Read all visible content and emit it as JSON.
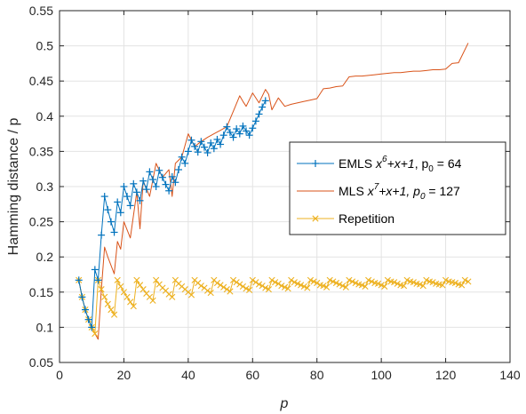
{
  "chart_data": {
    "type": "line",
    "xlabel": "p",
    "ylabel": "Hamming distance / p",
    "xlim": [
      0,
      140
    ],
    "ylim": [
      0.05,
      0.55
    ],
    "xticks": [
      0,
      20,
      40,
      60,
      80,
      100,
      120,
      140
    ],
    "yticks": [
      0.05,
      0.1,
      0.15,
      0.2,
      0.25,
      0.3,
      0.35,
      0.4,
      0.45,
      0.5,
      0.55
    ],
    "xtick_labels": [
      "0",
      "20",
      "40",
      "60",
      "80",
      "100",
      "120",
      "140"
    ],
    "ytick_labels": [
      "0.05",
      "0.1",
      "0.15",
      "0.2",
      "0.25",
      "0.3",
      "0.35",
      "0.4",
      "0.45",
      "0.5",
      "0.55"
    ],
    "grid": true,
    "legend_position": "right",
    "series": [
      {
        "name": "EMLS",
        "legend_label": {
          "prefix": "EMLS  ",
          "poly_base": "x",
          "poly_exp": "6",
          "poly_rest": "+x+1",
          "p0_text": ", p",
          "p0_sub": "0",
          "p0_value": " = 64"
        },
        "color": "#0072BD",
        "marker": "plus",
        "x": [
          6,
          7,
          8,
          9,
          10,
          11,
          12,
          13,
          14,
          15,
          16,
          17,
          18,
          19,
          20,
          21,
          22,
          23,
          24,
          25,
          26,
          27,
          28,
          29,
          30,
          31,
          32,
          33,
          34,
          35,
          36,
          37,
          38,
          39,
          40,
          41,
          42,
          43,
          44,
          45,
          46,
          47,
          48,
          49,
          50,
          51,
          52,
          53,
          54,
          55,
          56,
          57,
          58,
          59,
          60,
          61,
          62,
          63,
          64
        ],
        "values": [
          0.167,
          0.143,
          0.125,
          0.111,
          0.1,
          0.182,
          0.167,
          0.231,
          0.286,
          0.267,
          0.25,
          0.235,
          0.278,
          0.263,
          0.3,
          0.286,
          0.273,
          0.304,
          0.292,
          0.28,
          0.308,
          0.296,
          0.321,
          0.31,
          0.3,
          0.323,
          0.313,
          0.303,
          0.294,
          0.314,
          0.306,
          0.324,
          0.342,
          0.333,
          0.35,
          0.366,
          0.357,
          0.349,
          0.364,
          0.356,
          0.348,
          0.362,
          0.354,
          0.367,
          0.36,
          0.373,
          0.385,
          0.377,
          0.37,
          0.382,
          0.375,
          0.386,
          0.379,
          0.373,
          0.383,
          0.393,
          0.403,
          0.413,
          0.422
        ]
      },
      {
        "name": "MLS",
        "legend_label": {
          "prefix": "MLS  ",
          "poly_base": "x",
          "poly_exp": "7",
          "poly_rest": "+x+1",
          "p0_text": ", p",
          "p0_sub": "0",
          "p0_value": " = 127"
        },
        "color": "#D95319",
        "marker": "none",
        "x": [
          6,
          7,
          8,
          9,
          10,
          11,
          12,
          13,
          14,
          15,
          16,
          17,
          18,
          19,
          20,
          22,
          24,
          25,
          26,
          28,
          30,
          32,
          34,
          35,
          36,
          38,
          40,
          42,
          44,
          46,
          48,
          50,
          52,
          54,
          56,
          57,
          58,
          60,
          62,
          64,
          65,
          66,
          68,
          70,
          72,
          74,
          76,
          78,
          80,
          82,
          84,
          86,
          88,
          90,
          92,
          94,
          96,
          98,
          100,
          102,
          104,
          106,
          108,
          110,
          112,
          114,
          116,
          118,
          120,
          122,
          124,
          127
        ],
        "values": [
          0.167,
          0.143,
          0.125,
          0.111,
          0.1,
          0.091,
          0.083,
          0.154,
          0.214,
          0.2,
          0.188,
          0.176,
          0.222,
          0.211,
          0.25,
          0.227,
          0.292,
          0.24,
          0.308,
          0.286,
          0.333,
          0.313,
          0.324,
          0.286,
          0.333,
          0.342,
          0.375,
          0.357,
          0.364,
          0.37,
          0.375,
          0.38,
          0.385,
          0.407,
          0.429,
          0.421,
          0.414,
          0.433,
          0.419,
          0.438,
          0.431,
          0.409,
          0.426,
          0.414,
          0.417,
          0.419,
          0.421,
          0.423,
          0.425,
          0.439,
          0.44,
          0.442,
          0.443,
          0.456,
          0.457,
          0.457,
          0.458,
          0.459,
          0.46,
          0.461,
          0.462,
          0.462,
          0.463,
          0.464,
          0.464,
          0.465,
          0.466,
          0.466,
          0.467,
          0.475,
          0.476,
          0.504
        ]
      },
      {
        "name": "Repetition",
        "legend_label": {
          "prefix": "Repetition"
        },
        "color": "#EDB120",
        "marker": "x",
        "x": [
          6,
          7,
          8,
          9,
          10,
          11,
          12,
          13,
          14,
          15,
          16,
          17,
          18,
          19,
          20,
          21,
          22,
          23,
          24,
          25,
          26,
          27,
          28,
          29,
          30,
          31,
          32,
          33,
          34,
          35,
          36,
          37,
          38,
          39,
          40,
          41,
          42,
          43,
          44,
          45,
          46,
          47,
          48,
          49,
          50,
          51,
          52,
          53,
          54,
          55,
          56,
          57,
          58,
          59,
          60,
          61,
          62,
          63,
          64,
          65,
          66,
          67,
          68,
          69,
          70,
          71,
          72,
          73,
          74,
          75,
          76,
          77,
          78,
          79,
          80,
          81,
          82,
          83,
          84,
          85,
          86,
          87,
          88,
          89,
          90,
          91,
          92,
          93,
          94,
          95,
          96,
          97,
          98,
          99,
          100,
          101,
          102,
          103,
          104,
          105,
          106,
          107,
          108,
          109,
          110,
          111,
          112,
          113,
          114,
          115,
          116,
          117,
          118,
          119,
          120,
          121,
          122,
          123,
          124,
          125,
          126,
          127
        ],
        "values": [
          0.167,
          0.143,
          0.125,
          0.111,
          0.1,
          0.091,
          0.167,
          0.154,
          0.143,
          0.133,
          0.125,
          0.118,
          0.167,
          0.158,
          0.15,
          0.143,
          0.136,
          0.13,
          0.167,
          0.16,
          0.154,
          0.148,
          0.143,
          0.138,
          0.167,
          0.161,
          0.156,
          0.152,
          0.147,
          0.143,
          0.167,
          0.162,
          0.158,
          0.154,
          0.15,
          0.146,
          0.167,
          0.163,
          0.159,
          0.156,
          0.152,
          0.149,
          0.167,
          0.163,
          0.16,
          0.157,
          0.154,
          0.151,
          0.167,
          0.164,
          0.161,
          0.158,
          0.155,
          0.153,
          0.167,
          0.164,
          0.161,
          0.159,
          0.156,
          0.154,
          0.167,
          0.164,
          0.162,
          0.159,
          0.157,
          0.155,
          0.167,
          0.164,
          0.162,
          0.16,
          0.158,
          0.156,
          0.167,
          0.165,
          0.163,
          0.16,
          0.159,
          0.157,
          0.167,
          0.165,
          0.163,
          0.161,
          0.159,
          0.157,
          0.167,
          0.165,
          0.163,
          0.161,
          0.16,
          0.158,
          0.167,
          0.165,
          0.163,
          0.162,
          0.16,
          0.158,
          0.167,
          0.165,
          0.164,
          0.162,
          0.16,
          0.159,
          0.167,
          0.165,
          0.164,
          0.162,
          0.161,
          0.159,
          0.167,
          0.165,
          0.164,
          0.162,
          0.161,
          0.16,
          0.167,
          0.165,
          0.164,
          0.163,
          0.161,
          0.16,
          0.167,
          0.165
        ]
      }
    ]
  }
}
